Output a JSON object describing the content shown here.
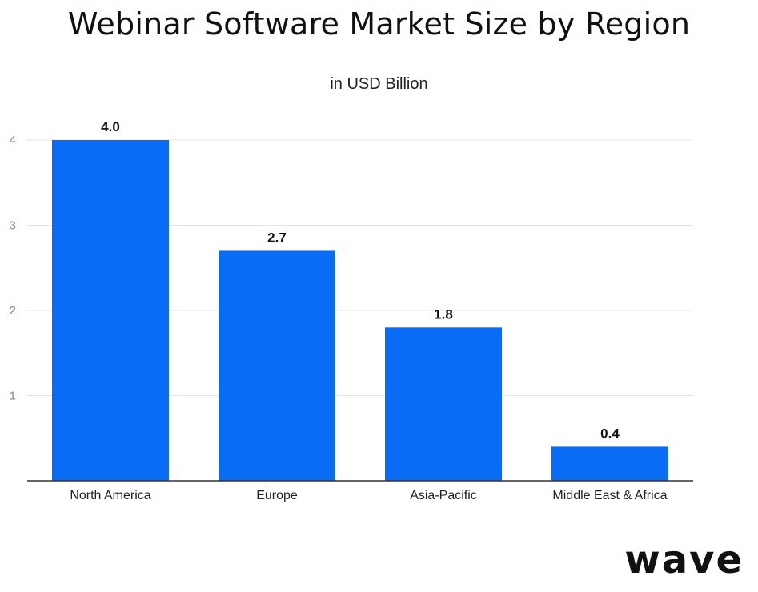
{
  "title": "Webinar Software Market Size by Region",
  "subtitle": "in USD Billion",
  "brand": "wave",
  "chart_data": {
    "type": "bar",
    "title": "Webinar Software Market Size by Region",
    "subtitle": "in USD Billion",
    "categories": [
      "North America",
      "Europe",
      "Asia-Pacific",
      "Middle East & Africa"
    ],
    "values": [
      4.0,
      2.7,
      1.8,
      0.4
    ],
    "data_labels": [
      "4.0",
      "2.7",
      "1.8",
      "0.4"
    ],
    "yticks": [
      "1",
      "2",
      "3",
      "4"
    ],
    "ylim": [
      0,
      4
    ],
    "grid": true,
    "bar_color": "#0a6cf5",
    "xlabel": "",
    "ylabel": ""
  }
}
